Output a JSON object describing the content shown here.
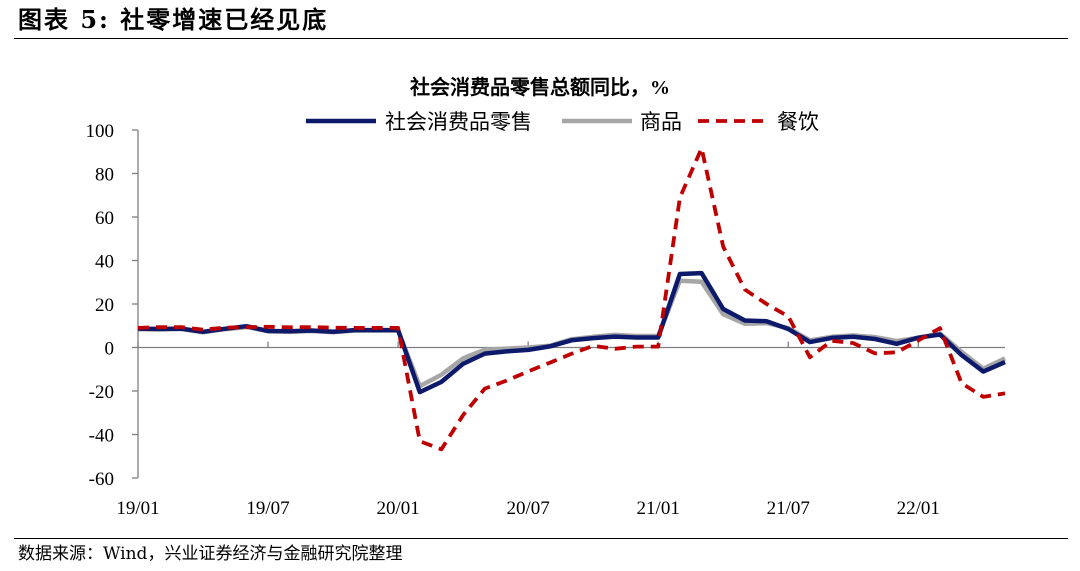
{
  "figure": {
    "label": "图表 5:",
    "caption": "社零增速已经见底",
    "source": "数据来源：Wind，兴业证券经济与金融研究院整理"
  },
  "chart_data": {
    "type": "line",
    "title": "社会消费品零售总额同比，%",
    "xlabel": "",
    "ylabel": "",
    "ylim": [
      -60,
      100
    ],
    "yticks": [
      100,
      80,
      60,
      40,
      20,
      0,
      -20,
      -40,
      -60
    ],
    "xtick_labels": [
      "19/01",
      "19/07",
      "20/01",
      "20/07",
      "21/01",
      "21/07",
      "22/01"
    ],
    "x": [
      "19/01",
      "19/02",
      "19/03",
      "19/04",
      "19/05",
      "19/06",
      "19/07",
      "19/08",
      "19/09",
      "19/10",
      "19/11",
      "19/12",
      "20/01",
      "20/02",
      "20/03",
      "20/04",
      "20/05",
      "20/06",
      "20/07",
      "20/08",
      "20/09",
      "20/10",
      "20/11",
      "20/12",
      "21/01",
      "21/02",
      "21/03",
      "21/04",
      "21/05",
      "21/06",
      "21/07",
      "21/08",
      "21/09",
      "21/10",
      "21/11",
      "21/12",
      "22/01",
      "22/02",
      "22/03",
      "22/04",
      "22/05"
    ],
    "legend_position": "top-center",
    "series": [
      {
        "name": "社会消费品零售",
        "color": "#0d1a6b",
        "style": "solid",
        "values": [
          8.7,
          8.5,
          8.7,
          7.2,
          8.6,
          9.8,
          7.6,
          7.5,
          7.8,
          7.2,
          8.0,
          8.0,
          8.0,
          -20.5,
          -15.8,
          -7.5,
          -2.8,
          -1.8,
          -1.1,
          0.5,
          3.3,
          4.3,
          5.0,
          4.6,
          4.6,
          33.8,
          34.2,
          17.7,
          12.4,
          12.1,
          8.5,
          2.5,
          4.4,
          4.9,
          3.9,
          1.7,
          4.5,
          6.0,
          -3.5,
          -11.1,
          -6.7
        ]
      },
      {
        "name": "商品",
        "color": "#a6a6a6",
        "style": "solid",
        "values": [
          8.4,
          8.3,
          8.5,
          7.0,
          8.4,
          9.4,
          7.5,
          7.2,
          7.6,
          7.0,
          7.8,
          7.8,
          7.8,
          -17.8,
          -12.5,
          -5.0,
          -1.0,
          -0.5,
          0.0,
          0.8,
          3.8,
          4.9,
          5.8,
          5.3,
          5.3,
          30.7,
          30.2,
          15.3,
          10.9,
          11.2,
          8.9,
          3.3,
          4.9,
          5.5,
          4.8,
          3.0,
          4.5,
          6.5,
          -2.0,
          -9.7,
          -5.0
        ]
      },
      {
        "name": "餐饮",
        "color": "#c00000",
        "style": "dashed",
        "values": [
          9.0,
          9.4,
          9.4,
          8.2,
          9.1,
          9.4,
          9.5,
          9.3,
          9.4,
          9.1,
          9.0,
          9.0,
          9.0,
          -43.1,
          -46.8,
          -31.1,
          -18.9,
          -15.2,
          -11.0,
          -7.0,
          -2.9,
          0.8,
          -0.6,
          0.4,
          0.4,
          68.9,
          91.6,
          46.4,
          26.6,
          20.0,
          14.3,
          -4.5,
          3.1,
          2.0,
          -2.7,
          -2.2,
          3.2,
          8.9,
          -16.4,
          -22.7,
          -21.1
        ]
      }
    ]
  }
}
